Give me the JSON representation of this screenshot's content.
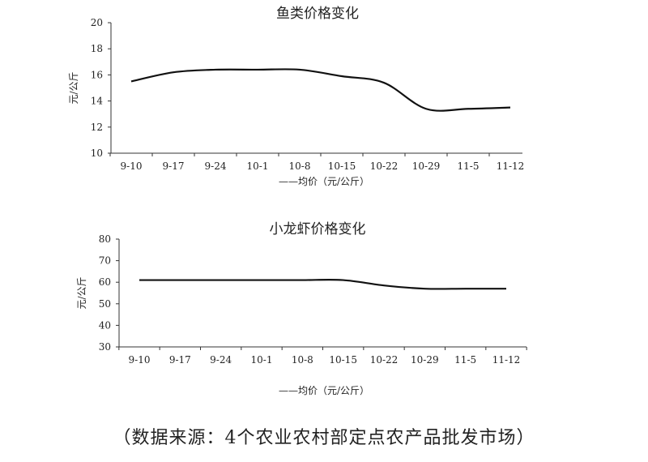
{
  "chart_data": [
    {
      "type": "line",
      "title": "鱼类价格变化",
      "ylabel": "元/公斤",
      "xlabel": "",
      "categories": [
        "9-10",
        "9-17",
        "9-24",
        "10-1",
        "10-8",
        "10-15",
        "10-22",
        "10-29",
        "11-5",
        "11-12"
      ],
      "series": [
        {
          "name": "——均价（元/公斤）",
          "values": [
            15.5,
            16.2,
            16.4,
            16.4,
            16.4,
            15.9,
            15.4,
            13.4,
            13.4,
            13.5
          ]
        }
      ],
      "ylim": [
        10,
        20
      ],
      "yticks": [
        10,
        12,
        14,
        16,
        18,
        20
      ],
      "grid": false,
      "legend": "bottom"
    },
    {
      "type": "line",
      "title": "小龙虾价格变化",
      "ylabel": "元/公斤",
      "xlabel": "",
      "categories": [
        "9-10",
        "9-17",
        "9-24",
        "10-1",
        "10-8",
        "10-15",
        "10-22",
        "10-29",
        "11-5",
        "11-12"
      ],
      "series": [
        {
          "name": "——均价（元/公斤）",
          "values": [
            61,
            61,
            61,
            61,
            61,
            61,
            58.5,
            57,
            57,
            57
          ]
        }
      ],
      "ylim": [
        30,
        80
      ],
      "yticks": [
        30,
        40,
        50,
        60,
        70,
        80
      ],
      "grid": false,
      "legend": "bottom"
    }
  ],
  "source_note": "（数据来源：4个农业农村部定点农产品批发市场）",
  "colors": {
    "line": "#111111",
    "axis": "#333333",
    "text": "#222222"
  }
}
